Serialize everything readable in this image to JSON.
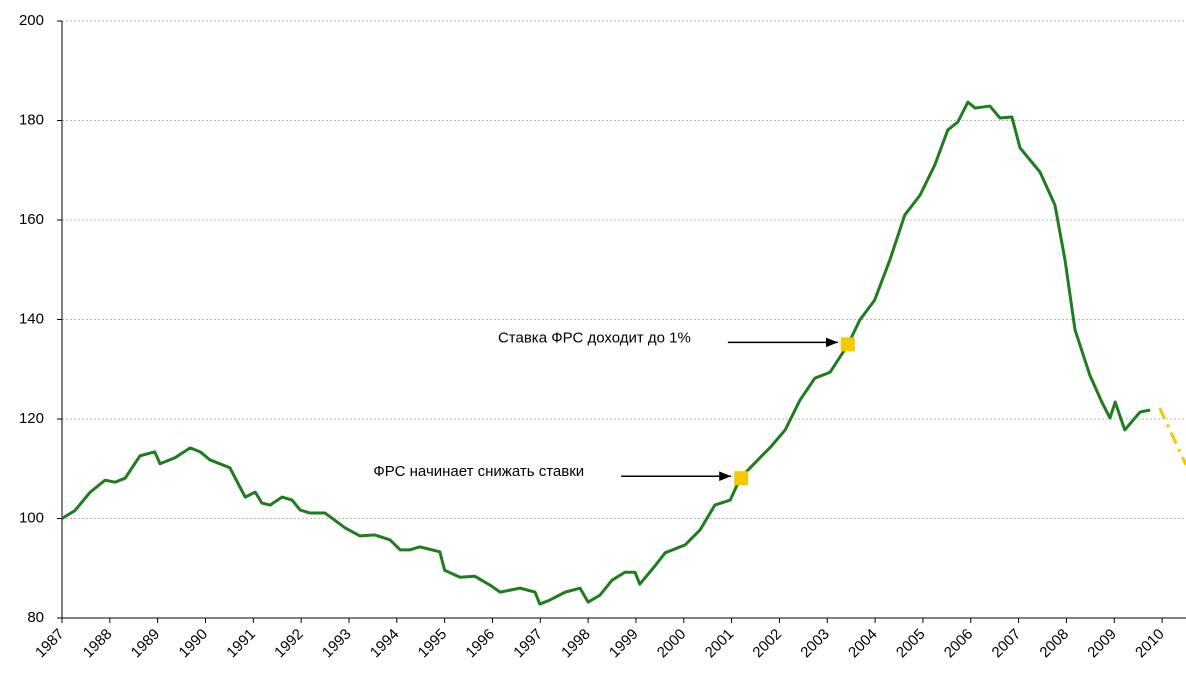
{
  "chart_data": {
    "type": "line",
    "yticks": [
      80,
      100,
      120,
      140,
      160,
      180,
      200
    ],
    "ylim": [
      80,
      200
    ],
    "xlim": [
      1987,
      2010.5
    ],
    "xticks": [
      1987,
      1988,
      1989,
      1990,
      1991,
      1992,
      1993,
      1994,
      1995,
      1996,
      1997,
      1998,
      1999,
      2000,
      2001,
      2002,
      2003,
      2004,
      2005,
      2006,
      2007,
      2008,
      2009,
      2010
    ],
    "grid": true,
    "series": [
      {
        "color": "#1e7d1e",
        "style": "solid",
        "x": [
          1987.0,
          1987.27,
          1987.59,
          1987.9,
          1988.11,
          1988.32,
          1988.63,
          1988.94,
          1989.05,
          1989.36,
          1989.68,
          1989.89,
          1990.09,
          1990.51,
          1990.83,
          1991.04,
          1991.18,
          1991.35,
          1991.6,
          1991.81,
          1991.98,
          1992.19,
          1992.5,
          1992.92,
          1993.23,
          1993.54,
          1993.86,
          1994.07,
          1994.28,
          1994.48,
          1994.9,
          1995.0,
          1995.32,
          1995.63,
          1995.95,
          1996.16,
          1996.58,
          1996.89,
          1996.99,
          1997.2,
          1997.52,
          1997.83,
          1998.0,
          1998.25,
          1998.5,
          1998.77,
          1998.98,
          1999.08,
          1999.4,
          1999.61,
          2000.03,
          2000.34,
          2000.65,
          2000.97,
          2001.18,
          2001.59,
          2001.8,
          2002.12,
          2002.43,
          2002.74,
          2003.06,
          2003.43,
          2003.68,
          2003.99,
          2004.31,
          2004.62,
          2004.94,
          2005.25,
          2005.52,
          2005.73,
          2005.94,
          2006.09,
          2006.4,
          2006.61,
          2006.86,
          2007.03,
          2007.45,
          2007.76,
          2007.97,
          2008.18,
          2008.49,
          2008.74,
          2008.91,
          2009.02,
          2009.22,
          2009.54,
          2009.75
        ],
        "values": [
          100,
          101.6,
          105.3,
          107.7,
          107.3,
          108.1,
          112.6,
          113.4,
          111,
          112.2,
          114.2,
          113.4,
          111.8,
          110.2,
          104.3,
          105.3,
          103.1,
          102.7,
          104.3,
          103.7,
          101.7,
          101.1,
          101.1,
          98.1,
          96.5,
          96.7,
          95.7,
          93.7,
          93.7,
          94.3,
          93.3,
          89.6,
          88.2,
          88.4,
          86.6,
          85.2,
          86,
          85.2,
          82.8,
          83.6,
          85.2,
          86,
          83.2,
          84.6,
          87.6,
          89.2,
          89.2,
          86.8,
          90.5,
          93.1,
          94.7,
          97.7,
          102.7,
          103.7,
          108.1,
          112.2,
          114.2,
          117.8,
          123.8,
          128.2,
          129.4,
          134.9,
          139.9,
          143.9,
          152,
          161,
          165,
          171.1,
          178.1,
          179.7,
          183.7,
          182.5,
          182.9,
          180.5,
          180.7,
          174.5,
          169.6,
          163,
          152,
          137.9,
          128.8,
          123.4,
          120.2,
          123.4,
          117.8,
          121.4,
          121.8
        ]
      },
      {
        "color": "#f5c800",
        "style": "dashdot",
        "x": [
          2009.95,
          2010.5
        ],
        "values": [
          122.2,
          110.8
        ]
      }
    ],
    "markers": {
      "color": "#f5c800",
      "x": [
        2001.2,
        2003.43
      ],
      "values": [
        108.1,
        135
      ]
    },
    "annotations": [
      "ФРС начинает снижать ставки",
      "Ставка ФРС доходит до 1%"
    ]
  }
}
